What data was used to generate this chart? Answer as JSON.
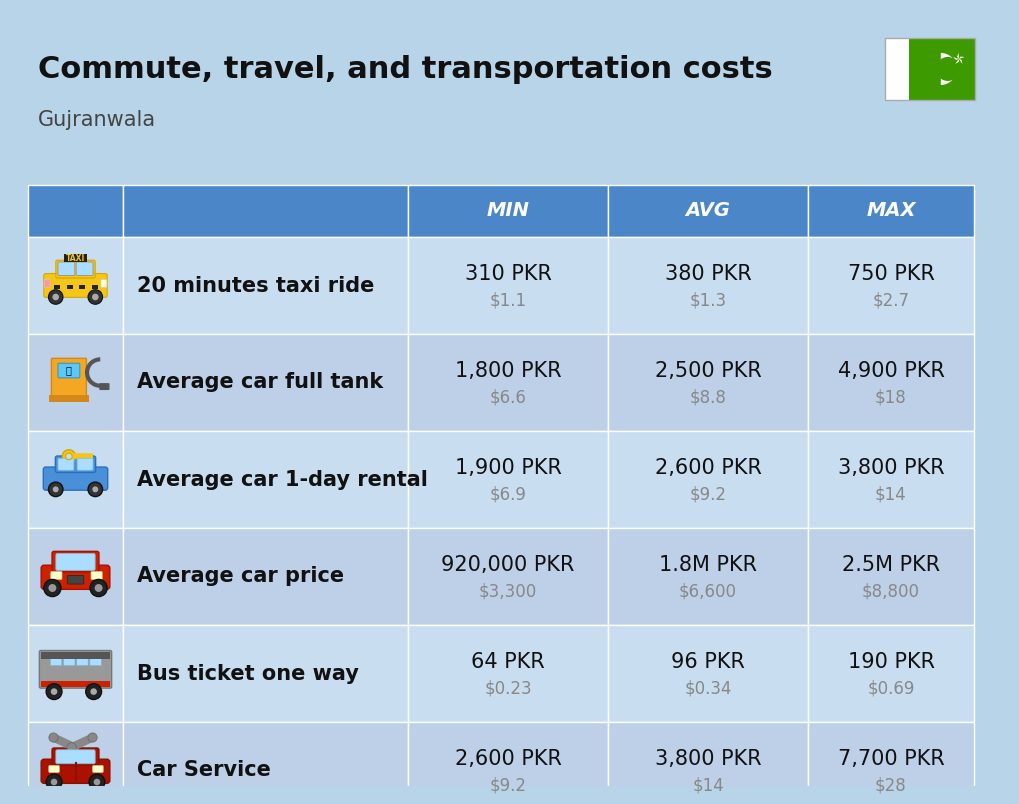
{
  "title": "Commute, travel, and transportation costs",
  "subtitle": "Gujranwala",
  "title_color": "#111111",
  "subtitle_color": "#444444",
  "bg_color": "#b8d4e8",
  "header_bg_color": "#4a86c8",
  "row_bg_color_even": "#c8ddf0",
  "row_bg_color_odd": "#bdd0e8",
  "header_text_color": "#ffffff",
  "col_headers": [
    "MIN",
    "AVG",
    "MAX"
  ],
  "rows": [
    {
      "label": "20 minutes taxi ride",
      "min_pkr": "310 PKR",
      "min_usd": "$1.1",
      "avg_pkr": "380 PKR",
      "avg_usd": "$1.3",
      "max_pkr": "750 PKR",
      "max_usd": "$2.7"
    },
    {
      "label": "Average car full tank",
      "min_pkr": "1,800 PKR",
      "min_usd": "$6.6",
      "avg_pkr": "2,500 PKR",
      "avg_usd": "$8.8",
      "max_pkr": "4,900 PKR",
      "max_usd": "$18"
    },
    {
      "label": "Average car 1-day rental",
      "min_pkr": "1,900 PKR",
      "min_usd": "$6.9",
      "avg_pkr": "2,600 PKR",
      "avg_usd": "$9.2",
      "max_pkr": "3,800 PKR",
      "max_usd": "$14"
    },
    {
      "label": "Average car price",
      "min_pkr": "920,000 PKR",
      "min_usd": "$3,300",
      "avg_pkr": "1.8M PKR",
      "avg_usd": "$6,600",
      "max_pkr": "2.5M PKR",
      "max_usd": "$8,800"
    },
    {
      "label": "Bus ticket one way",
      "min_pkr": "64 PKR",
      "min_usd": "$0.23",
      "avg_pkr": "96 PKR",
      "avg_usd": "$0.34",
      "max_pkr": "190 PKR",
      "max_usd": "$0.69"
    },
    {
      "label": "Car Service",
      "min_pkr": "2,600 PKR",
      "min_usd": "$9.2",
      "avg_pkr": "3,800 PKR",
      "avg_usd": "$14",
      "max_pkr": "7,700 PKR",
      "max_usd": "$28"
    }
  ],
  "pkr_color": "#111111",
  "usd_color": "#888888",
  "label_color": "#111111",
  "pkr_fontsize": 15,
  "usd_fontsize": 12,
  "label_fontsize": 15,
  "header_fontsize": 14,
  "title_fontsize": 22,
  "subtitle_fontsize": 15,
  "cell_divider_color": "#ffffff",
  "flag_green": "#3d9a00",
  "flag_white": "#ffffff"
}
